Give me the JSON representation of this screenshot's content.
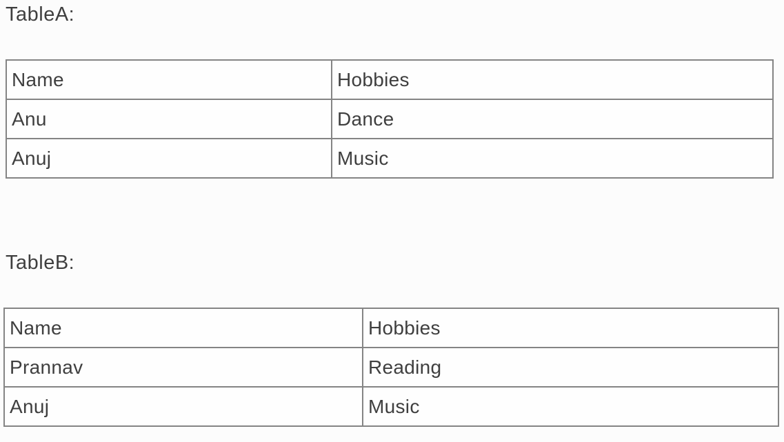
{
  "theme": {
    "background": "#fcfcfc",
    "text_color": "#3f3f3f",
    "border_color": "#848484"
  },
  "tables": [
    {
      "label": "TableA:",
      "columns": [
        "Name",
        "Hobbies"
      ],
      "rows": [
        [
          "Anu",
          "Dance"
        ],
        [
          "Anuj",
          "Music"
        ]
      ]
    },
    {
      "label": "TableB:",
      "columns": [
        "Name",
        "Hobbies"
      ],
      "rows": [
        [
          "Prannav",
          "Reading"
        ],
        [
          "Anuj",
          "Music"
        ]
      ]
    }
  ]
}
